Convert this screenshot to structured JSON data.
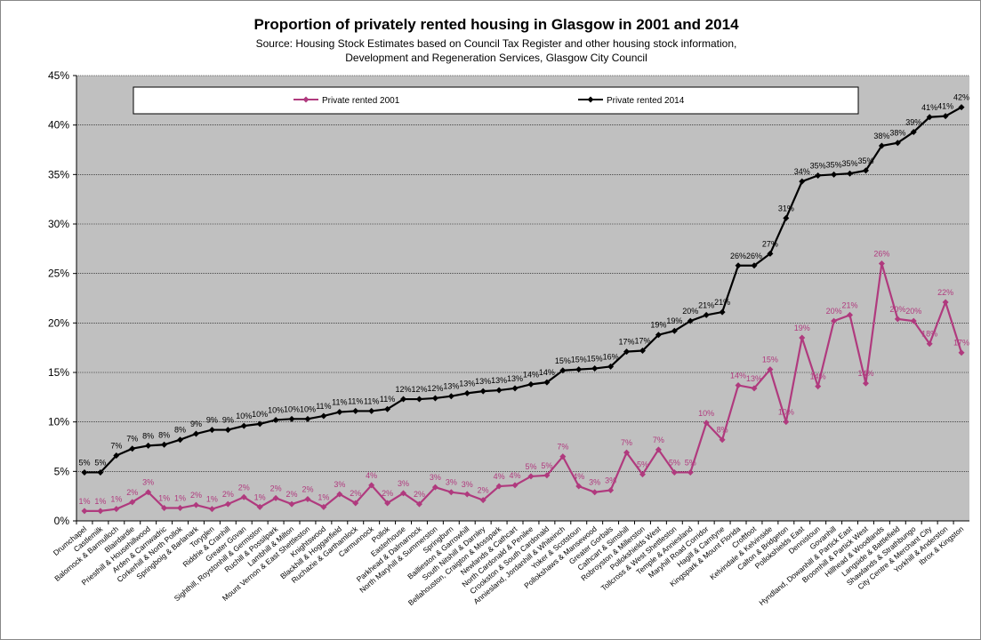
{
  "chart_data": {
    "type": "line",
    "title": "Proportion of privately rented housing in Glasgow in 2001 and 2014",
    "subtitle": [
      "Source: Housing Stock Estimates based on Council Tax Register and other housing stock information,",
      "Development and Regeneration Services, Glasgow City Council"
    ],
    "categories": [
      "Drumchapel",
      "Castlemilk",
      "Balornock & Barmulloch",
      "Blairdardie",
      "Priesthill & Househillwood",
      "Arden & Carnwadric",
      "Corkerhill & North Pollok",
      "Springboig & Barlanark",
      "Toryglen",
      "Riddrie & Cranhill",
      "Greater Govan",
      "Sighthill, Roystonhill & Germiston",
      "Ruchill & Possilpark",
      "Lambhill & Milton",
      "Mount Vernon & East Shettleston",
      "Knightswood",
      "Blackhill & Hogganfield",
      "Ruchazie & Garthamlock",
      "Carmunnock",
      "Pollok",
      "Easterhouse",
      "Parkhead & Dalmarnock",
      "North Maryhill & Summerston",
      "Springburn",
      "Baillieston & Garrowhill",
      "South Nitshill & Darnley",
      "Bellahouston, Craigton & Mosspark",
      "Newlands & Cathcart",
      "North Cardonald & Penilee",
      "Crookston & South Cardonald",
      "Anniesland, Jordanhill & Whiteinch",
      "Yoker & Scotstoun",
      "Pollokshaws & Mansewood",
      "Greater Gorbals",
      "Cathcart & Simshill",
      "Robroyston & Millerston",
      "Pollokshields West",
      "Tollcross & West Shettleston",
      "Temple & Anniesland",
      "Maryhill Road Corridor",
      "Hagill & Carntyne",
      "Kingspark & Mount Florida",
      "Croftfoot",
      "Kelvindale & Kelvinside",
      "Calton & Bridgeton",
      "Pollokshields East",
      "Dennistoun",
      "Govanhill",
      "Hyndland, Dowanhill & Partick East",
      "Broomhill & Partick West",
      "Hillhead & Woodlands",
      "Langside & Battlefield",
      "Shawlands & Strathbungo",
      "City Centre & Merchant City",
      "Yorkhill & Anderston",
      "Ibrox & Kingston"
    ],
    "series": [
      {
        "name": "Private rented 2001",
        "color": "#b03a7e",
        "values": [
          1.0,
          1.0,
          1.2,
          1.9,
          2.9,
          1.3,
          1.3,
          1.6,
          1.2,
          1.7,
          2.4,
          1.4,
          2.3,
          1.7,
          2.2,
          1.4,
          2.7,
          1.8,
          3.6,
          1.8,
          2.8,
          1.7,
          3.4,
          2.9,
          2.7,
          2.1,
          3.5,
          3.6,
          4.5,
          4.6,
          6.5,
          3.5,
          2.9,
          3.1,
          6.9,
          4.7,
          7.2,
          4.9,
          4.9,
          9.9,
          8.2,
          13.7,
          13.4,
          15.3,
          10.0,
          18.5,
          13.6,
          20.2,
          20.8,
          13.9,
          26.0,
          20.4,
          20.2,
          17.9,
          22.1,
          17.0
        ],
        "value_labels": [
          "1%",
          "1%",
          "1%",
          "2%",
          "3%",
          "1%",
          "1%",
          "2%",
          "1%",
          "2%",
          "2%",
          "1%",
          "2%",
          "2%",
          "2%",
          "1%",
          "3%",
          "2%",
          "4%",
          "2%",
          "3%",
          "2%",
          "3%",
          "3%",
          "3%",
          "2%",
          "4%",
          "4%",
          "5%",
          "5%",
          "7%",
          "4%",
          "3%",
          "3%",
          "7%",
          "5%",
          "7%",
          "5%",
          "5%",
          "10%",
          "8%",
          "14%",
          "13%",
          "15%",
          "10%",
          "19%",
          "14%",
          "20%",
          "21%",
          "14%",
          "26%",
          "20%",
          "20%",
          "18%",
          "22%",
          "17%"
        ]
      },
      {
        "name": "Private rented 2014",
        "color": "#000000",
        "values": [
          4.9,
          4.9,
          6.6,
          7.3,
          7.6,
          7.7,
          8.2,
          8.8,
          9.2,
          9.2,
          9.6,
          9.8,
          10.2,
          10.3,
          10.3,
          10.6,
          11.0,
          11.1,
          11.1,
          11.3,
          12.3,
          12.3,
          12.4,
          12.6,
          12.9,
          13.1,
          13.2,
          13.4,
          13.8,
          14.0,
          15.2,
          15.3,
          15.4,
          15.6,
          17.1,
          17.2,
          18.8,
          19.2,
          20.2,
          20.8,
          21.1,
          25.8,
          25.8,
          27.0,
          30.6,
          34.3,
          34.9,
          35.0,
          35.1,
          35.4,
          37.9,
          38.2,
          39.3,
          40.8,
          40.9,
          41.8
        ],
        "value_labels": [
          "5%",
          "5%",
          "7%",
          "7%",
          "8%",
          "8%",
          "8%",
          "9%",
          "9%",
          "9%",
          "10%",
          "10%",
          "10%",
          "10%",
          "10%",
          "11%",
          "11%",
          "11%",
          "11%",
          "11%",
          "12%",
          "12%",
          "12%",
          "13%",
          "13%",
          "13%",
          "13%",
          "13%",
          "14%",
          "14%",
          "15%",
          "15%",
          "15%",
          "16%",
          "17%",
          "17%",
          "19%",
          "19%",
          "20%",
          "21%",
          "21%",
          "26%",
          "26%",
          "27%",
          "31%",
          "34%",
          "35%",
          "35%",
          "35%",
          "35%",
          "38%",
          "38%",
          "39%",
          "41%",
          "41%",
          "42%"
        ]
      }
    ],
    "ylim": [
      0,
      45
    ],
    "yticks": [
      {
        "value": 0,
        "label": "0%"
      },
      {
        "value": 5,
        "label": "5%"
      },
      {
        "value": 10,
        "label": "10%"
      },
      {
        "value": 15,
        "label": "15%"
      },
      {
        "value": 20,
        "label": "20%"
      },
      {
        "value": 25,
        "label": "25%"
      },
      {
        "value": 30,
        "label": "30%"
      },
      {
        "value": 35,
        "label": "35%"
      },
      {
        "value": 40,
        "label": "40%"
      },
      {
        "value": 45,
        "label": "45%"
      }
    ],
    "grid": true,
    "legend": "top"
  }
}
